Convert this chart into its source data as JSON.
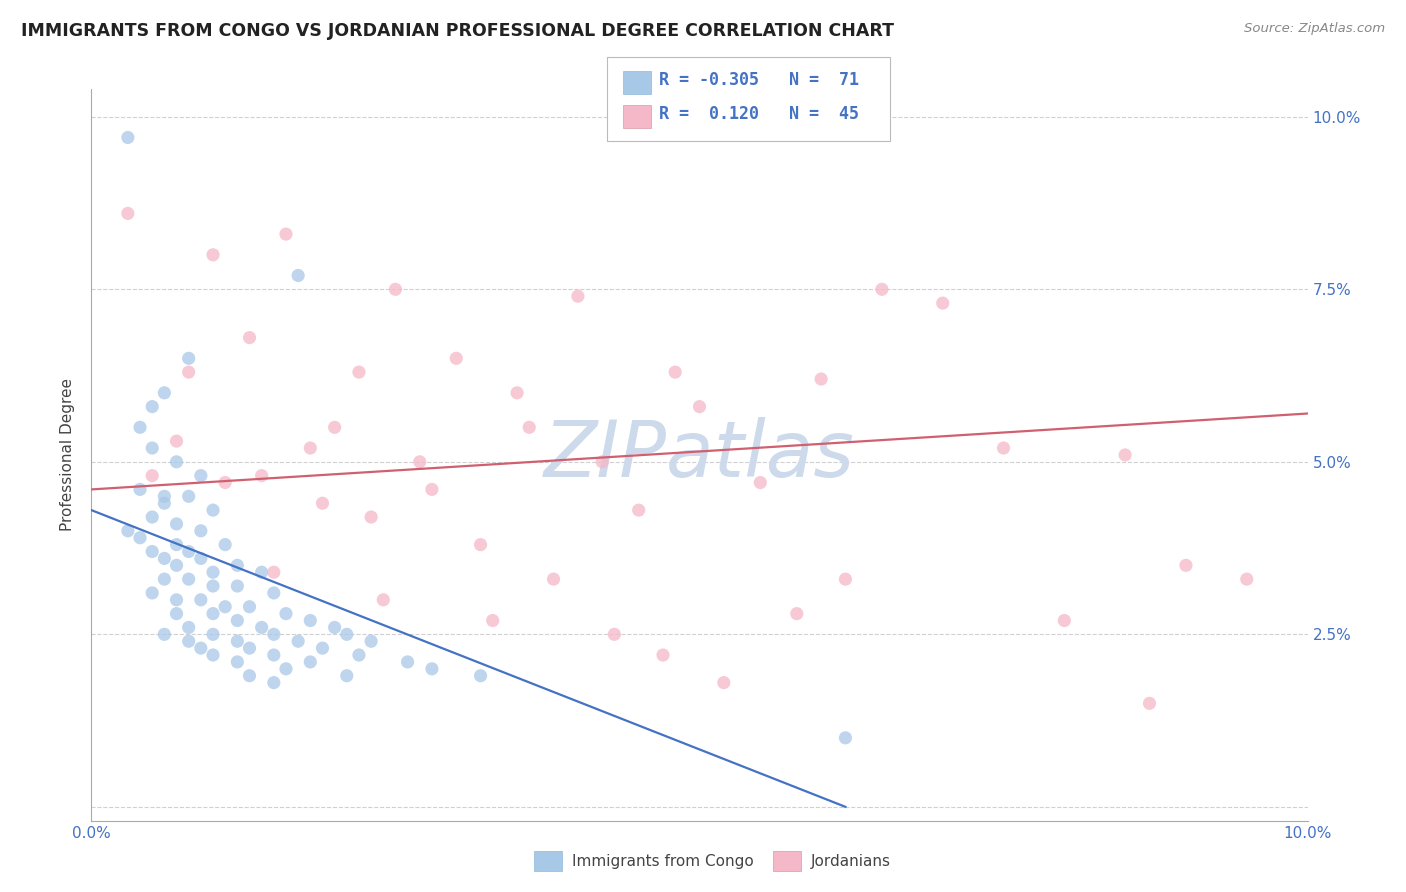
{
  "title": "IMMIGRANTS FROM CONGO VS JORDANIAN PROFESSIONAL DEGREE CORRELATION CHART",
  "source": "Source: ZipAtlas.com",
  "ylabel": "Professional Degree",
  "xlim": [
    0.0,
    0.1
  ],
  "ylim": [
    0.0,
    0.1
  ],
  "yticks": [
    0.0,
    0.025,
    0.05,
    0.075,
    0.1
  ],
  "watermark": "ZIPatlas",
  "color_congo": "#a8c8e8",
  "color_jordan": "#f4b8c8",
  "color_line_congo": "#4472c4",
  "color_line_jordan": "#d06070",
  "color_legend_text": "#4472c4",
  "color_title": "#222222",
  "color_source": "#888888",
  "background_color": "#ffffff",
  "grid_color": "#d0d0d0",
  "watermark_color": "#cddaeb",
  "congo_line_x0": 0.0,
  "congo_line_y0": 0.043,
  "congo_line_x1": 0.062,
  "congo_line_y1": 0.0,
  "jordan_line_x0": 0.0,
  "jordan_line_y0": 0.046,
  "jordan_line_x1": 0.1,
  "jordan_line_y1": 0.057,
  "congo_pts": [
    [
      0.003,
      0.097
    ],
    [
      0.017,
      0.077
    ],
    [
      0.008,
      0.065
    ],
    [
      0.006,
      0.06
    ],
    [
      0.005,
      0.058
    ],
    [
      0.004,
      0.055
    ],
    [
      0.005,
      0.052
    ],
    [
      0.007,
      0.05
    ],
    [
      0.009,
      0.048
    ],
    [
      0.004,
      0.046
    ],
    [
      0.006,
      0.045
    ],
    [
      0.008,
      0.045
    ],
    [
      0.006,
      0.044
    ],
    [
      0.01,
      0.043
    ],
    [
      0.005,
      0.042
    ],
    [
      0.007,
      0.041
    ],
    [
      0.009,
      0.04
    ],
    [
      0.003,
      0.04
    ],
    [
      0.004,
      0.039
    ],
    [
      0.011,
      0.038
    ],
    [
      0.007,
      0.038
    ],
    [
      0.005,
      0.037
    ],
    [
      0.008,
      0.037
    ],
    [
      0.006,
      0.036
    ],
    [
      0.009,
      0.036
    ],
    [
      0.012,
      0.035
    ],
    [
      0.007,
      0.035
    ],
    [
      0.01,
      0.034
    ],
    [
      0.014,
      0.034
    ],
    [
      0.006,
      0.033
    ],
    [
      0.008,
      0.033
    ],
    [
      0.01,
      0.032
    ],
    [
      0.012,
      0.032
    ],
    [
      0.005,
      0.031
    ],
    [
      0.015,
      0.031
    ],
    [
      0.007,
      0.03
    ],
    [
      0.009,
      0.03
    ],
    [
      0.011,
      0.029
    ],
    [
      0.013,
      0.029
    ],
    [
      0.007,
      0.028
    ],
    [
      0.01,
      0.028
    ],
    [
      0.016,
      0.028
    ],
    [
      0.012,
      0.027
    ],
    [
      0.018,
      0.027
    ],
    [
      0.008,
      0.026
    ],
    [
      0.014,
      0.026
    ],
    [
      0.02,
      0.026
    ],
    [
      0.006,
      0.025
    ],
    [
      0.01,
      0.025
    ],
    [
      0.015,
      0.025
    ],
    [
      0.021,
      0.025
    ],
    [
      0.008,
      0.024
    ],
    [
      0.012,
      0.024
    ],
    [
      0.017,
      0.024
    ],
    [
      0.023,
      0.024
    ],
    [
      0.009,
      0.023
    ],
    [
      0.013,
      0.023
    ],
    [
      0.019,
      0.023
    ],
    [
      0.01,
      0.022
    ],
    [
      0.015,
      0.022
    ],
    [
      0.022,
      0.022
    ],
    [
      0.012,
      0.021
    ],
    [
      0.018,
      0.021
    ],
    [
      0.026,
      0.021
    ],
    [
      0.016,
      0.02
    ],
    [
      0.028,
      0.02
    ],
    [
      0.013,
      0.019
    ],
    [
      0.021,
      0.019
    ],
    [
      0.032,
      0.019
    ],
    [
      0.015,
      0.018
    ],
    [
      0.062,
      0.01
    ]
  ],
  "jordan_pts": [
    [
      0.003,
      0.086
    ],
    [
      0.016,
      0.083
    ],
    [
      0.01,
      0.08
    ],
    [
      0.025,
      0.075
    ],
    [
      0.065,
      0.075
    ],
    [
      0.04,
      0.074
    ],
    [
      0.07,
      0.073
    ],
    [
      0.013,
      0.068
    ],
    [
      0.03,
      0.065
    ],
    [
      0.008,
      0.063
    ],
    [
      0.022,
      0.063
    ],
    [
      0.048,
      0.063
    ],
    [
      0.06,
      0.062
    ],
    [
      0.035,
      0.06
    ],
    [
      0.05,
      0.058
    ],
    [
      0.02,
      0.055
    ],
    [
      0.036,
      0.055
    ],
    [
      0.007,
      0.053
    ],
    [
      0.018,
      0.052
    ],
    [
      0.075,
      0.052
    ],
    [
      0.085,
      0.051
    ],
    [
      0.027,
      0.05
    ],
    [
      0.042,
      0.05
    ],
    [
      0.005,
      0.048
    ],
    [
      0.014,
      0.048
    ],
    [
      0.011,
      0.047
    ],
    [
      0.055,
      0.047
    ],
    [
      0.028,
      0.046
    ],
    [
      0.019,
      0.044
    ],
    [
      0.045,
      0.043
    ],
    [
      0.023,
      0.042
    ],
    [
      0.032,
      0.038
    ],
    [
      0.09,
      0.035
    ],
    [
      0.015,
      0.034
    ],
    [
      0.038,
      0.033
    ],
    [
      0.062,
      0.033
    ],
    [
      0.095,
      0.033
    ],
    [
      0.024,
      0.03
    ],
    [
      0.058,
      0.028
    ],
    [
      0.033,
      0.027
    ],
    [
      0.08,
      0.027
    ],
    [
      0.043,
      0.025
    ],
    [
      0.047,
      0.022
    ],
    [
      0.052,
      0.018
    ],
    [
      0.087,
      0.015
    ]
  ]
}
